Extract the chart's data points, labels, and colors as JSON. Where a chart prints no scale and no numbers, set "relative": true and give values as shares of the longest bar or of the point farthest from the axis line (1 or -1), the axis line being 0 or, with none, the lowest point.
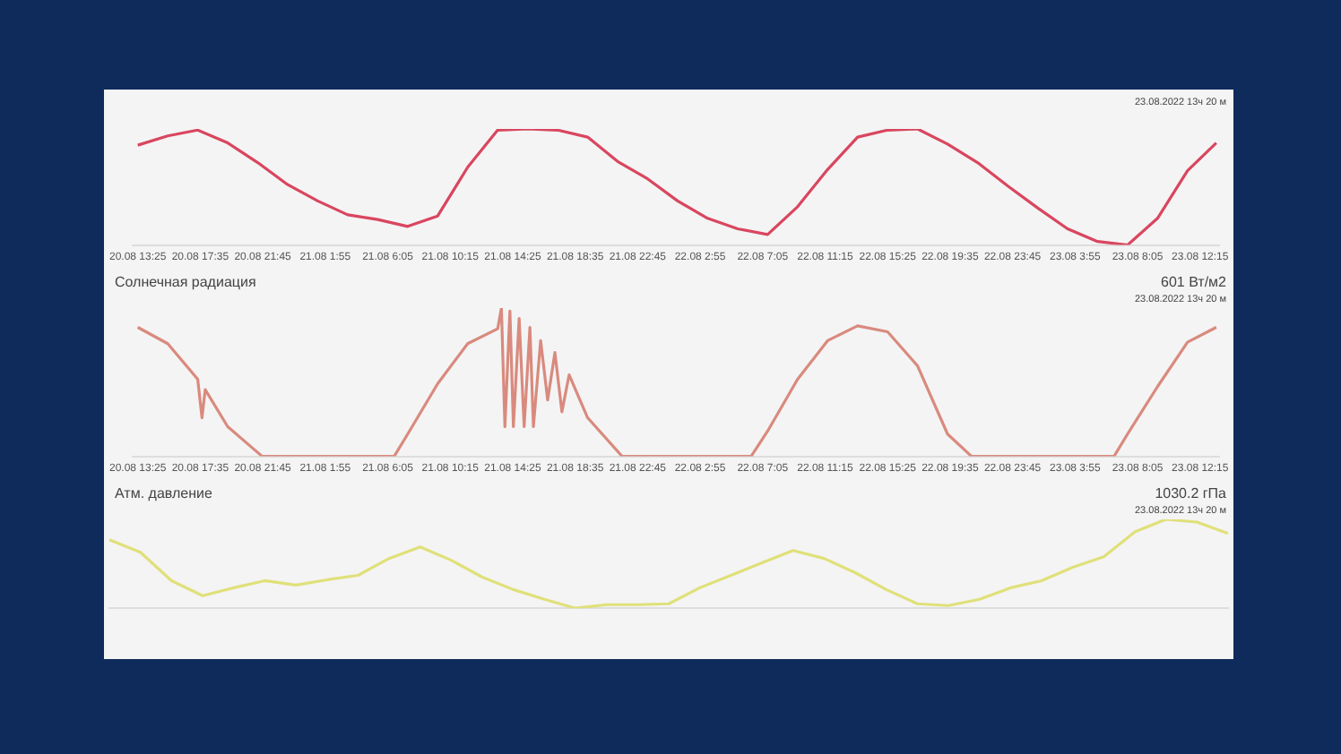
{
  "chart_data": [
    {
      "type": "line",
      "subtitle": "23.08.2022 13ч 20 м",
      "relative": true,
      "xlim": [
        "2022-08-20T13:05",
        "2022-08-23T13:30"
      ],
      "xticks": [
        {
          "value": "2022-08-20T13:25",
          "label": "20.08 13:25"
        },
        {
          "value": "2022-08-20T17:35",
          "label": "20.08 17:35"
        },
        {
          "value": "2022-08-20T21:45",
          "label": "20.08 21:45"
        },
        {
          "value": "2022-08-21T01:55",
          "label": "21.08 1:55"
        },
        {
          "value": "2022-08-21T06:05",
          "label": "21.08 6:05"
        },
        {
          "value": "2022-08-21T10:15",
          "label": "21.08 10:15"
        },
        {
          "value": "2022-08-21T14:25",
          "label": "21.08 14:25"
        },
        {
          "value": "2022-08-21T18:35",
          "label": "21.08 18:35"
        },
        {
          "value": "2022-08-21T22:45",
          "label": "21.08 22:45"
        },
        {
          "value": "2022-08-22T02:55",
          "label": "22.08 2:55"
        },
        {
          "value": "2022-08-22T07:05",
          "label": "22.08 7:05"
        },
        {
          "value": "2022-08-22T11:15",
          "label": "22.08 11:15"
        },
        {
          "value": "2022-08-22T15:25",
          "label": "22.08 15:25"
        },
        {
          "value": "2022-08-22T19:35",
          "label": "22.08 19:35"
        },
        {
          "value": "2022-08-22T23:45",
          "label": "22.08 23:45"
        },
        {
          "value": "2022-08-23T03:55",
          "label": "23.08 3:55"
        },
        {
          "value": "2022-08-23T08:05",
          "label": "23.08 8:05"
        },
        {
          "value": "2022-08-23T12:15",
          "label": "23.08 12:15"
        }
      ],
      "series": [
        {
          "color": "#d9465f",
          "x": [
            "2022-08-20T13:25",
            "2022-08-20T15:25",
            "2022-08-20T17:25",
            "2022-08-20T19:25",
            "2022-08-20T21:25",
            "2022-08-20T23:25",
            "2022-08-21T01:25",
            "2022-08-21T03:25",
            "2022-08-21T05:25",
            "2022-08-21T07:25",
            "2022-08-21T09:25",
            "2022-08-21T11:25",
            "2022-08-21T13:25",
            "2022-08-21T15:25",
            "2022-08-21T17:25",
            "2022-08-21T19:25",
            "2022-08-21T21:25",
            "2022-08-21T23:25",
            "2022-08-22T01:25",
            "2022-08-22T03:25",
            "2022-08-22T05:25",
            "2022-08-22T07:25",
            "2022-08-22T09:25",
            "2022-08-22T11:25",
            "2022-08-22T13:25",
            "2022-08-22T15:25",
            "2022-08-22T17:25",
            "2022-08-22T19:25",
            "2022-08-22T21:25",
            "2022-08-22T23:25",
            "2022-08-23T01:25",
            "2022-08-23T03:25",
            "2022-08-23T05:25",
            "2022-08-23T07:25",
            "2022-08-23T09:25",
            "2022-08-23T11:25",
            "2022-08-23T13:20"
          ],
          "values": [
            0.86,
            0.94,
            0.99,
            0.88,
            0.71,
            0.52,
            0.38,
            0.26,
            0.22,
            0.16,
            0.25,
            0.67,
            0.99,
            1,
            0.99,
            0.93,
            0.72,
            0.57,
            0.38,
            0.23,
            0.14,
            0.09,
            0.33,
            0.65,
            0.93,
            0.99,
            1,
            0.87,
            0.71,
            0.51,
            0.32,
            0.14,
            0.03,
            0,
            0.23,
            0.64,
            0.88
          ]
        }
      ]
    },
    {
      "type": "line",
      "title": "Солнечная радиация",
      "subtitle": "23.08.2022 13ч 20 м",
      "annotations": [
        "601 Вт/м2"
      ],
      "relative": true,
      "xlim": [
        "2022-08-20T13:05",
        "2022-08-23T13:30"
      ],
      "xticks": [
        {
          "value": "2022-08-20T13:25",
          "label": "20.08 13:25"
        },
        {
          "value": "2022-08-20T17:35",
          "label": "20.08 17:35"
        },
        {
          "value": "2022-08-20T21:45",
          "label": "20.08 21:45"
        },
        {
          "value": "2022-08-21T01:55",
          "label": "21.08 1:55"
        },
        {
          "value": "2022-08-21T06:05",
          "label": "21.08 6:05"
        },
        {
          "value": "2022-08-21T10:15",
          "label": "21.08 10:15"
        },
        {
          "value": "2022-08-21T14:25",
          "label": "21.08 14:25"
        },
        {
          "value": "2022-08-21T18:35",
          "label": "21.08 18:35"
        },
        {
          "value": "2022-08-21T22:45",
          "label": "21.08 22:45"
        },
        {
          "value": "2022-08-22T02:55",
          "label": "22.08 2:55"
        },
        {
          "value": "2022-08-22T07:05",
          "label": "22.08 7:05"
        },
        {
          "value": "2022-08-22T11:15",
          "label": "22.08 11:15"
        },
        {
          "value": "2022-08-22T15:25",
          "label": "22.08 15:25"
        },
        {
          "value": "2022-08-22T19:35",
          "label": "22.08 19:35"
        },
        {
          "value": "2022-08-22T23:45",
          "label": "22.08 23:45"
        },
        {
          "value": "2022-08-23T03:55",
          "label": "23.08 3:55"
        },
        {
          "value": "2022-08-23T08:05",
          "label": "23.08 8:05"
        },
        {
          "value": "2022-08-23T12:15",
          "label": "23.08 12:15"
        }
      ],
      "series": [
        {
          "color": "#d98a7e",
          "x": [
            "2022-08-20T13:25",
            "2022-08-20T15:25",
            "2022-08-20T17:25",
            "2022-08-20T17:42",
            "2022-08-20T17:55",
            "2022-08-20T19:25",
            "2022-08-20T21:43",
            "2022-08-21T01:25",
            "2022-08-21T05:25",
            "2022-08-21T06:31",
            "2022-08-21T07:25",
            "2022-08-21T09:25",
            "2022-08-21T11:25",
            "2022-08-21T13:25",
            "2022-08-21T13:40",
            "2022-08-21T13:54",
            "2022-08-21T14:14",
            "2022-08-21T14:28",
            "2022-08-21T14:51",
            "2022-08-21T15:11",
            "2022-08-21T15:34",
            "2022-08-21T15:48",
            "2022-08-21T16:17",
            "2022-08-21T16:45",
            "2022-08-21T17:14",
            "2022-08-21T17:42",
            "2022-08-21T18:11",
            "2022-08-21T19:25",
            "2022-08-21T21:43",
            "2022-08-22T01:25",
            "2022-08-22T06:19",
            "2022-08-22T07:25",
            "2022-08-22T09:25",
            "2022-08-22T11:25",
            "2022-08-22T13:25",
            "2022-08-22T15:25",
            "2022-08-22T17:25",
            "2022-08-22T19:25",
            "2022-08-22T21:01",
            "2022-08-23T01:25",
            "2022-08-23T06:31",
            "2022-08-23T07:25",
            "2022-08-23T09:25",
            "2022-08-23T11:25",
            "2022-08-23T13:20"
          ],
          "values": [
            0.87,
            0.76,
            0.52,
            0.26,
            0.45,
            0.2,
            0,
            0,
            0,
            0,
            0.15,
            0.49,
            0.76,
            0.86,
            1,
            0.2,
            0.98,
            0.2,
            0.93,
            0.2,
            0.87,
            0.2,
            0.78,
            0.38,
            0.7,
            0.3,
            0.55,
            0.26,
            0,
            0,
            0,
            0.17,
            0.52,
            0.78,
            0.88,
            0.84,
            0.61,
            0.15,
            0,
            0,
            0,
            0.15,
            0.47,
            0.77,
            0.87
          ]
        }
      ]
    },
    {
      "type": "line",
      "title": "Атм. давление",
      "subtitle": "23.08.2022 13ч 20 м",
      "annotations": [
        "1030.2 гПа"
      ],
      "relative": true,
      "categories": [
        null,
        null,
        null,
        null,
        null,
        null,
        null,
        null,
        null,
        null,
        null,
        null,
        null,
        null,
        null,
        null,
        null,
        null,
        null,
        null,
        null,
        null,
        null,
        null,
        null,
        null,
        null,
        null,
        null,
        null,
        null,
        null,
        null,
        null,
        null,
        null,
        null
      ],
      "series": [
        {
          "color": "#e0e07a",
          "values": [
            0.77,
            0.63,
            0.31,
            0.14,
            0.23,
            0.31,
            0.26,
            0.32,
            0.37,
            0.56,
            0.69,
            0.54,
            0.35,
            0.21,
            0.1,
            0,
            0.04,
            0.04,
            0.05,
            0.23,
            0.37,
            0.51,
            0.65,
            0.56,
            0.4,
            0.21,
            0.05,
            0.03,
            0.1,
            0.23,
            0.31,
            0.46,
            0.58,
            0.86,
            1,
            0.97,
            0.84
          ]
        }
      ]
    }
  ]
}
